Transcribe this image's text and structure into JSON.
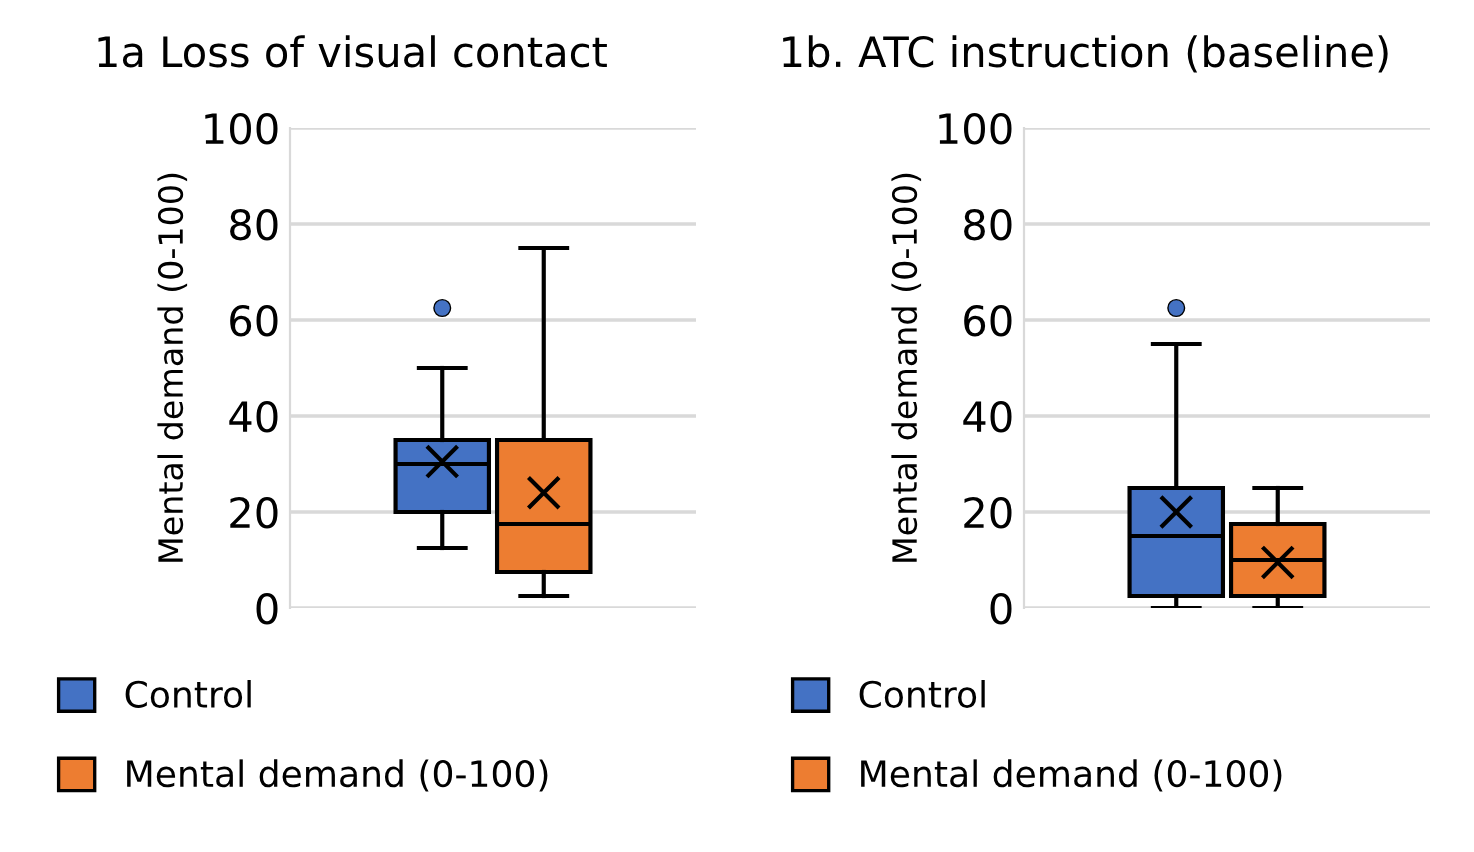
{
  "chart_data": [
    {
      "type": "box",
      "title": "1a Loss of visual contact",
      "ylabel": "Mental demand (0-100)",
      "categories": [
        null
      ],
      "ylim": [
        0,
        100
      ],
      "yticks": [
        0,
        20,
        40,
        60,
        80,
        100
      ],
      "grid": "y",
      "legend": "bottom",
      "series": [
        {
          "name": "Control",
          "color": "#4472c4",
          "boxes": [
            {
              "low": 12.5,
              "q1": 20,
              "median": 30,
              "q3": 35,
              "high": 50,
              "mean": 30.5,
              "outliers": [
                62.5
              ]
            }
          ]
        },
        {
          "name": "Mental demand (0-100)",
          "color": "#ed7d31",
          "boxes": [
            {
              "low": 2.5,
              "q1": 7.5,
              "median": 17.5,
              "q3": 35,
              "high": 75,
              "mean": 24
            }
          ]
        }
      ]
    },
    {
      "type": "box",
      "title": "1b. ATC instruction (baseline)",
      "ylabel": "Mental demand (0-100)",
      "categories": [
        null
      ],
      "ylim": [
        0,
        100
      ],
      "yticks": [
        0,
        20,
        40,
        60,
        80,
        100
      ],
      "grid": "y",
      "legend": "bottom",
      "series": [
        {
          "name": "Control",
          "color": "#4472c4",
          "boxes": [
            {
              "low": 0,
              "q1": 2.5,
              "median": 15,
              "q3": 25,
              "high": 55,
              "mean": 20,
              "outliers": [
                62.5
              ]
            }
          ]
        },
        {
          "name": "Mental demand (0-100)",
          "color": "#ed7d31",
          "boxes": [
            {
              "low": 0,
              "q1": 2.5,
              "median": 10,
              "q3": 17.5,
              "high": 25,
              "mean": 9.5
            }
          ]
        }
      ]
    }
  ]
}
